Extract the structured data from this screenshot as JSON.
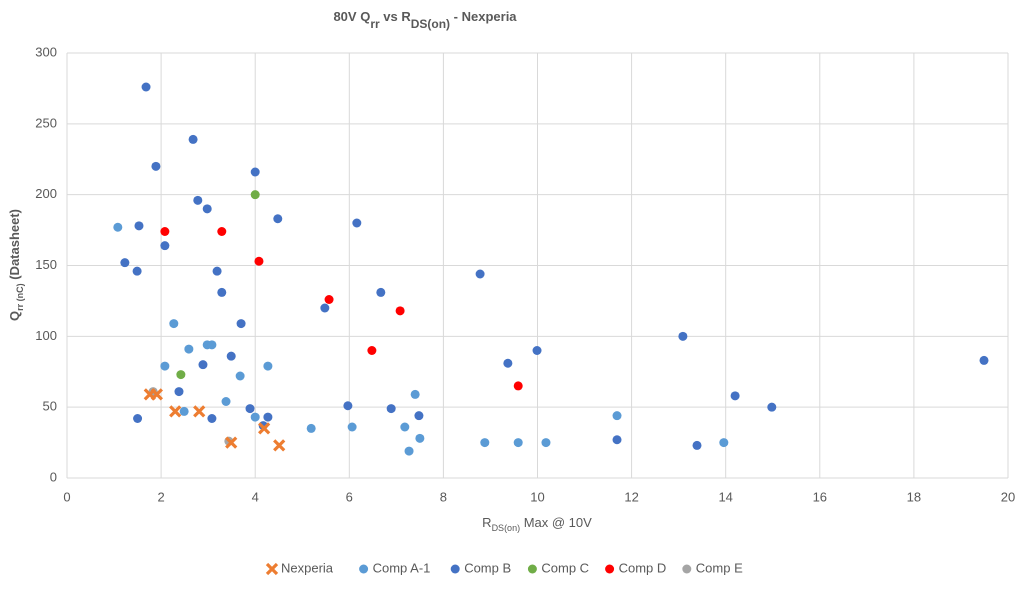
{
  "chart_data": {
    "type": "scatter",
    "title": [
      "80V Q",
      "rr",
      " vs R",
      "DS(on)",
      " - Nexperia"
    ],
    "x_label": [
      "R",
      "DS(on)",
      " Max @ 10V"
    ],
    "y_label": [
      "Q",
      "rr (nC)",
      " (Datasheet)"
    ],
    "xlim": [
      0,
      20
    ],
    "xticks": [
      0,
      2,
      4,
      6,
      8,
      10,
      12,
      14,
      16,
      18,
      20
    ],
    "ylim": [
      0,
      300
    ],
    "yticks": [
      0,
      50,
      100,
      150,
      200,
      250,
      300
    ],
    "grid": true,
    "legend": "bottom",
    "series": [
      {
        "name": "Nexperia",
        "color": "#ed7d31",
        "marker": "x",
        "x": [
          1.76,
          1.91,
          2.3,
          2.81,
          3.49,
          4.19,
          4.51
        ],
        "values": [
          59,
          59,
          47,
          47,
          25,
          35,
          23
        ]
      },
      {
        "name": "Comp A-1",
        "color": "#5b9bd5",
        "marker": "circle",
        "x": [
          1.08,
          2.08,
          2.27,
          2.49,
          2.59,
          2.98,
          3.08,
          3.38,
          3.68,
          4.0,
          4.27,
          5.19,
          6.06,
          7.18,
          7.27,
          7.4,
          7.5,
          8.88,
          9.59,
          10.18,
          11.69,
          13.96
        ],
        "values": [
          177,
          79,
          109,
          47,
          91,
          94,
          94,
          54,
          72,
          43,
          79,
          35,
          36,
          36,
          19,
          59,
          28,
          25,
          25,
          25,
          44,
          25
        ]
      },
      {
        "name": "Comp B",
        "color": "#4472c4",
        "marker": "circle",
        "x": [
          1.68,
          1.89,
          1.53,
          1.23,
          1.49,
          2.08,
          1.5,
          2.38,
          2.68,
          2.78,
          2.98,
          2.89,
          3.08,
          3.19,
          3.29,
          3.49,
          3.7,
          3.89,
          4.0,
          4.17,
          4.27,
          4.48,
          5.48,
          5.97,
          6.16,
          6.67,
          6.89,
          7.48,
          8.78,
          9.37,
          9.99,
          11.69,
          13.09,
          13.39,
          14.2,
          14.98,
          19.49
        ],
        "values": [
          276,
          220,
          178,
          152,
          146,
          164,
          42,
          61,
          239,
          196,
          190,
          80,
          42,
          146,
          131,
          86,
          109,
          49,
          216,
          37,
          43,
          183,
          120,
          51,
          180,
          131,
          49,
          44,
          144,
          81,
          90,
          27,
          100,
          23,
          58,
          50,
          83
        ]
      },
      {
        "name": "Comp C",
        "color": "#70ad47",
        "marker": "circle",
        "x": [
          4.0,
          2.42
        ],
        "values": [
          200,
          73
        ]
      },
      {
        "name": "Comp D",
        "color": "#ff0000",
        "marker": "circle",
        "x": [
          2.08,
          3.29,
          4.08,
          5.57,
          6.48,
          7.08,
          9.59
        ],
        "values": [
          174,
          174,
          153,
          126,
          90,
          118,
          65
        ]
      },
      {
        "name": "Comp E",
        "color": "#a5a5a5",
        "marker": "circle",
        "x": [
          1.83,
          3.44
        ],
        "values": [
          61,
          26
        ]
      }
    ]
  }
}
